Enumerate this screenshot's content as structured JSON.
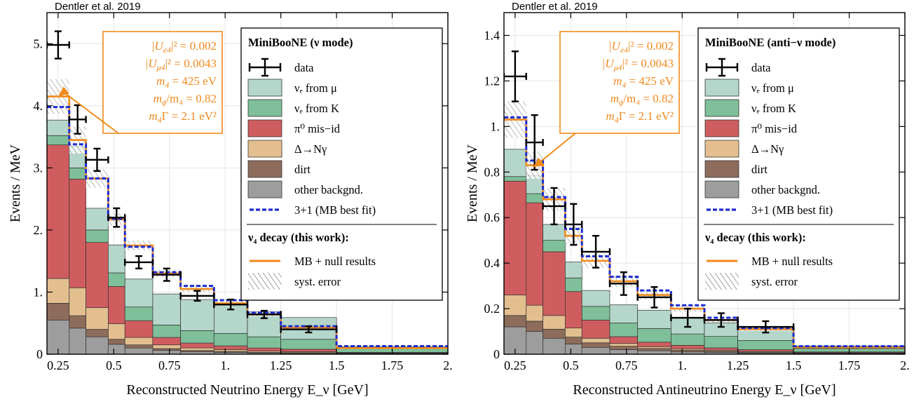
{
  "colors": {
    "nue_mu": "#b5d6ca",
    "nue_k": "#7fbf99",
    "pi0": "#cf5d5f",
    "delta": "#e3bf90",
    "dirt": "#8d6c5c",
    "other": "#9d9d9d",
    "mb_fit": "#1c2ccf",
    "null_results": "#f08a1c",
    "data": "#000000"
  },
  "chart_data": [
    {
      "type": "bar",
      "credit": "Dentler et al. 2019",
      "xlabel": "Reconstructed Neutrino Energy E_ν [GeV]",
      "ylabel": "Events / MeV",
      "xlim": [
        0.2,
        2.0
      ],
      "ylim": [
        0,
        5.5
      ],
      "xticks": [
        0.25,
        0.5,
        0.75,
        1.0,
        1.25,
        1.5,
        1.75,
        2.0
      ],
      "xtick_labels": [
        "0.25",
        "0.5",
        "0.75",
        "1.",
        "1.25",
        "1.5",
        "1.75",
        "2."
      ],
      "yticks": [
        0,
        1,
        2,
        3,
        4,
        5
      ],
      "ytick_labels": [
        "0",
        "1.",
        "2.",
        "3.",
        "4.",
        "5."
      ],
      "bin_edges": [
        0.2,
        0.3,
        0.375,
        0.475,
        0.55,
        0.675,
        0.8,
        0.95,
        1.1,
        1.25,
        1.5,
        3.0
      ],
      "stack": [
        {
          "key": "other",
          "values": [
            0.55,
            0.42,
            0.28,
            0.16,
            0.1,
            0.06,
            0.04,
            0.03,
            0.02,
            0.015,
            0.01
          ]
        },
        {
          "key": "dirt",
          "values": [
            0.27,
            0.2,
            0.12,
            0.08,
            0.05,
            0.03,
            0.02,
            0.015,
            0.01,
            0.01,
            0.005
          ]
        },
        {
          "key": "delta",
          "values": [
            0.4,
            0.45,
            0.35,
            0.25,
            0.12,
            0.06,
            0.04,
            0.03,
            0.02,
            0.015,
            0.005
          ]
        },
        {
          "key": "pi0",
          "values": [
            2.15,
            1.75,
            1.05,
            0.6,
            0.27,
            0.12,
            0.08,
            0.06,
            0.05,
            0.04,
            0.01
          ]
        },
        {
          "key": "nue_k",
          "values": [
            0.15,
            0.18,
            0.2,
            0.22,
            0.22,
            0.2,
            0.2,
            0.2,
            0.18,
            0.16,
            0.06
          ]
        },
        {
          "key": "nue_mu",
          "values": [
            0.25,
            0.35,
            0.35,
            0.45,
            0.45,
            0.5,
            0.5,
            0.45,
            0.4,
            0.35,
            0.03
          ]
        }
      ],
      "mb_best_fit": [
        3.98,
        3.38,
        2.83,
        2.18,
        1.73,
        1.32,
        1.1,
        0.87,
        0.67,
        0.45,
        0.13
      ],
      "null_results": [
        4.15,
        3.45,
        2.83,
        2.17,
        1.75,
        1.3,
        1.05,
        0.82,
        0.64,
        0.43,
        0.1
      ],
      "syst_error_band": [
        0.28,
        0.22,
        0.15,
        0.1,
        0.08,
        0.06,
        0.05,
        0.04,
        0.03,
        0.02,
        0.01
      ],
      "data_points": {
        "x": [
          0.25,
          0.3375,
          0.425,
          0.5125,
          0.6125,
          0.7375,
          0.875,
          1.025,
          1.175,
          1.375
        ],
        "y": [
          4.98,
          3.78,
          3.13,
          2.2,
          1.48,
          1.28,
          0.94,
          0.8,
          0.64,
          0.4
        ],
        "xerr": [
          0.05,
          0.0375,
          0.05,
          0.0375,
          0.0625,
          0.0625,
          0.075,
          0.075,
          0.075,
          0.125
        ],
        "yerr": [
          0.22,
          0.23,
          0.18,
          0.15,
          0.1,
          0.1,
          0.08,
          0.08,
          0.06,
          0.05
        ]
      },
      "annotation": {
        "lines": [
          {
            "pre": "|U",
            "sub": "e4",
            "post": "|² = 0.002"
          },
          {
            "pre": "|U",
            "sub": "μ4",
            "post": "|² = 0.0043"
          },
          {
            "pre": "m",
            "sub": "4",
            "post": " = 425 eV"
          },
          {
            "pre": "m",
            "sub": "ϕ",
            "post": "/m₄ = 0.82"
          },
          {
            "pre": "m",
            "sub": "4",
            "post": "Γ = 2.1 eV²"
          }
        ],
        "points_to": {
          "x": 0.25,
          "y": 4.15
        }
      },
      "legend": {
        "title": "MiniBooNE (ν mode)",
        "items": [
          {
            "label": "data",
            "type": "data"
          },
          {
            "label": "νₑ from μ",
            "type": "fill",
            "color_key": "nue_mu"
          },
          {
            "label": "νₑ from K",
            "type": "fill",
            "color_key": "nue_k"
          },
          {
            "label": "π⁰ mis−id",
            "type": "fill",
            "color_key": "pi0"
          },
          {
            "label": "Δ→Nγ",
            "type": "fill",
            "color_key": "delta"
          },
          {
            "label": "dirt",
            "type": "fill",
            "color_key": "dirt"
          },
          {
            "label": "other backgnd.",
            "type": "fill",
            "color_key": "other"
          },
          {
            "label": "3+1 (MB best fit)",
            "type": "dashed",
            "color_key": "mb_fit"
          }
        ],
        "section2_title": "ν₄ decay (this work):",
        "items2": [
          {
            "label": "MB + null results",
            "type": "line",
            "color_key": "null_results"
          },
          {
            "label": "syst. error",
            "type": "hatch"
          }
        ]
      }
    },
    {
      "type": "bar",
      "credit": "Dentler et al. 2019",
      "xlabel": "Reconstructed Antineutrino Energy E_ν [GeV]",
      "ylabel": "Events / MeV",
      "xlim": [
        0.2,
        2.0
      ],
      "ylim": [
        0,
        1.5
      ],
      "xticks": [
        0.25,
        0.5,
        0.75,
        1.0,
        1.25,
        1.5,
        1.75,
        2.0
      ],
      "xtick_labels": [
        "0.25",
        "0.5",
        "0.75",
        "1.",
        "1.25",
        "1.5",
        "1.75",
        "2."
      ],
      "yticks": [
        0,
        0.2,
        0.4,
        0.6,
        0.8,
        1.0,
        1.2,
        1.4
      ],
      "ytick_labels": [
        "0",
        "0.2",
        "0.4",
        "0.6",
        "0.8",
        "1.",
        "1.2",
        "1.4"
      ],
      "bin_edges": [
        0.2,
        0.3,
        0.375,
        0.475,
        0.55,
        0.675,
        0.8,
        0.95,
        1.1,
        1.25,
        1.5,
        3.0
      ],
      "stack": [
        {
          "key": "other",
          "values": [
            0.12,
            0.1,
            0.07,
            0.045,
            0.03,
            0.02,
            0.015,
            0.01,
            0.008,
            0.005,
            0.003
          ]
        },
        {
          "key": "dirt",
          "values": [
            0.05,
            0.045,
            0.04,
            0.03,
            0.02,
            0.015,
            0.01,
            0.008,
            0.006,
            0.004,
            0.002
          ]
        },
        {
          "key": "delta",
          "values": [
            0.09,
            0.07,
            0.06,
            0.04,
            0.02,
            0.012,
            0.008,
            0.006,
            0.004,
            0.003,
            0.002
          ]
        },
        {
          "key": "pi0",
          "values": [
            0.5,
            0.45,
            0.28,
            0.16,
            0.08,
            0.03,
            0.02,
            0.015,
            0.01,
            0.008,
            0.003
          ]
        },
        {
          "key": "nue_k",
          "values": [
            0.02,
            0.04,
            0.05,
            0.06,
            0.06,
            0.06,
            0.06,
            0.05,
            0.05,
            0.04,
            0.015
          ]
        },
        {
          "key": "nue_mu",
          "values": [
            0.12,
            0.08,
            0.07,
            0.07,
            0.07,
            0.08,
            0.08,
            0.07,
            0.06,
            0.05,
            0.01
          ]
        }
      ],
      "mb_best_fit": [
        1.04,
        0.85,
        0.69,
        0.55,
        0.43,
        0.34,
        0.28,
        0.215,
        0.16,
        0.115,
        0.035
      ],
      "null_results": [
        1.03,
        0.83,
        0.68,
        0.52,
        0.41,
        0.32,
        0.26,
        0.2,
        0.15,
        0.11,
        0.03
      ],
      "syst_error_band": [
        0.08,
        0.06,
        0.05,
        0.04,
        0.03,
        0.025,
        0.02,
        0.015,
        0.01,
        0.008,
        0.004
      ],
      "data_points": {
        "x": [
          0.25,
          0.3375,
          0.425,
          0.5125,
          0.6125,
          0.7375,
          0.875,
          1.025,
          1.175,
          1.375
        ],
        "y": [
          1.22,
          0.93,
          0.65,
          0.57,
          0.45,
          0.31,
          0.25,
          0.16,
          0.15,
          0.12
        ],
        "xerr": [
          0.05,
          0.0375,
          0.05,
          0.0375,
          0.0625,
          0.0625,
          0.075,
          0.075,
          0.075,
          0.125
        ],
        "yerr": [
          0.11,
          0.12,
          0.08,
          0.09,
          0.07,
          0.05,
          0.045,
          0.04,
          0.03,
          0.025
        ]
      },
      "annotation": {
        "lines": [
          {
            "pre": "|U",
            "sub": "e4",
            "post": "|² = 0.002"
          },
          {
            "pre": "|U",
            "sub": "μ4",
            "post": "|² = 0.0043"
          },
          {
            "pre": "m",
            "sub": "4",
            "post": " = 425 eV"
          },
          {
            "pre": "m",
            "sub": "ϕ",
            "post": "/m₄ = 0.82"
          },
          {
            "pre": "m",
            "sub": "4",
            "post": "Γ = 2.1 eV²"
          }
        ],
        "points_to": {
          "x": 0.33,
          "y": 0.82
        }
      },
      "legend": {
        "title": "MiniBooNE (anti−ν mode)",
        "items": [
          {
            "label": "data",
            "type": "data"
          },
          {
            "label": "νₑ from μ",
            "type": "fill",
            "color_key": "nue_mu"
          },
          {
            "label": "νₑ from K",
            "type": "fill",
            "color_key": "nue_k"
          },
          {
            "label": "π⁰ mis−id",
            "type": "fill",
            "color_key": "pi0"
          },
          {
            "label": "Δ→Nγ",
            "type": "fill",
            "color_key": "delta"
          },
          {
            "label": "dirt",
            "type": "fill",
            "color_key": "dirt"
          },
          {
            "label": "other backgnd.",
            "type": "fill",
            "color_key": "other"
          },
          {
            "label": "3+1 (MB best fit)",
            "type": "dashed",
            "color_key": "mb_fit"
          }
        ],
        "section2_title": "ν₄ decay (this work):",
        "items2": [
          {
            "label": "MB + null results",
            "type": "line",
            "color_key": "null_results"
          },
          {
            "label": "syst. error",
            "type": "hatch"
          }
        ]
      }
    }
  ]
}
